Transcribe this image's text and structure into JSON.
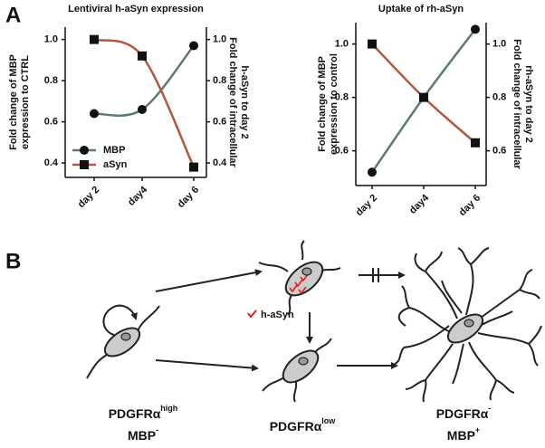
{
  "panel_labels": [
    "A",
    "B"
  ],
  "chart_data": [
    {
      "type": "line",
      "title": "Lentiviral h-aSyn expression",
      "categories": [
        "day 2",
        "day4",
        "day 6"
      ],
      "ylabel": [
        "Fold change of MBP",
        "expression to CTRL"
      ],
      "y2label": [
        "Fold change of intracellular",
        "h-aSyn to day 2"
      ],
      "ylim": [
        0.33,
        1.06
      ],
      "yticks": [
        0.4,
        0.6,
        0.8,
        {
          "value": 1,
          "label": "1.0"
        }
      ],
      "y2lim": [
        0.33,
        1.06
      ],
      "y2ticks": [
        0.4,
        0.6,
        0.8,
        {
          "value": 1,
          "label": "1.0"
        }
      ],
      "legend": "lower left",
      "series": [
        {
          "name": "MBP",
          "color": "#5e7a68",
          "marker": "circle",
          "values": [
            0.64,
            0.66,
            0.97
          ]
        },
        {
          "name": "aSyn",
          "color": "#b3573d",
          "marker": "square",
          "axis": "y2",
          "values": [
            1.0,
            0.92,
            0.38
          ]
        }
      ]
    },
    {
      "type": "line",
      "title": "Uptake of rh-aSyn",
      "categories": [
        "day 2",
        "day4",
        "day 6"
      ],
      "ylabel": [
        "Fold change of MBP",
        "expression to control"
      ],
      "y2label": [
        "Fold change of intracellular",
        "rh-aSyn to day 2"
      ],
      "ylim": [
        0.47,
        1.08
      ],
      "yticks": [
        0.6,
        0.8,
        {
          "value": 1,
          "label": "1.0"
        }
      ],
      "y2lim": [
        0.47,
        1.08
      ],
      "y2ticks": [
        0.6,
        0.8,
        {
          "value": 1,
          "label": "1.0"
        }
      ],
      "series": [
        {
          "name": "MBP",
          "color": "#5e7a68",
          "marker": "circle",
          "values": [
            0.52,
            0.8,
            1.055
          ]
        },
        {
          "name": "aSyn",
          "color": "#b3573d",
          "marker": "square",
          "axis": "y2",
          "values": [
            1.0,
            0.8,
            0.63
          ]
        }
      ]
    }
  ],
  "diagram": {
    "legend": "h-aSyn",
    "cells": [
      {
        "marker": "PDGFRα",
        "marker_sup": "high",
        "mbp": "MBP",
        "mbp_sup": "-"
      },
      {
        "marker": "PDGFRα",
        "marker_sup": "low"
      },
      {
        "marker": "PDGFRα",
        "marker_sup": "-",
        "mbp": "MBP",
        "mbp_sup": "+"
      }
    ]
  }
}
